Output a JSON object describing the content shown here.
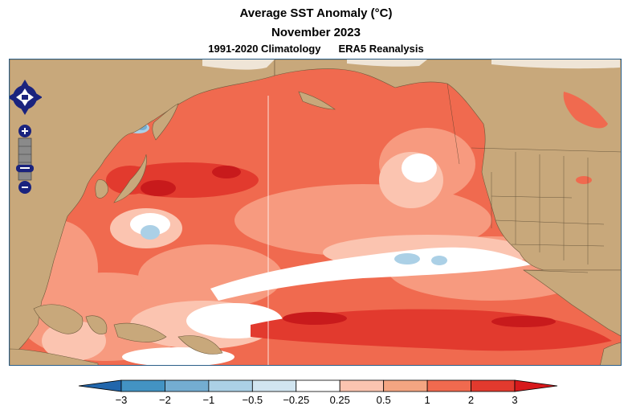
{
  "title": "Average SST Anomaly (°C)",
  "subtitle": "November 2023",
  "climatology": "1991-2020 Climatology",
  "dataset": "ERA5 Reanalysis",
  "colorbar": {
    "labels": [
      "−3",
      "−2",
      "−1",
      "−0.5",
      "−0.25",
      "0.25",
      "0.5",
      "1",
      "2",
      "3"
    ],
    "colors": [
      "#2166ac",
      "#4393c3",
      "#74add1",
      "#abd0e6",
      "#d1e5f0",
      "#ffffff",
      "#fbc4b0",
      "#f4a582",
      "#f06a4f",
      "#e23a2e",
      "#d7191c"
    ]
  },
  "map": {
    "land_color": "#c8a87b",
    "ocean_base_color": "#f05a47",
    "border_color": "#2b5f8a"
  },
  "nav_control": {
    "zoom_in": "+",
    "zoom_out": "−"
  }
}
